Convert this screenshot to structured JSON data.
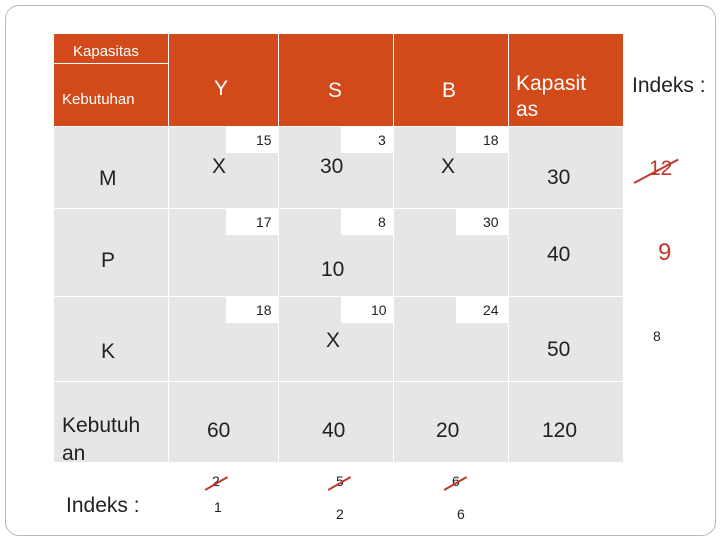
{
  "table": {
    "corner_top": "Kapasitas",
    "corner_bottom": "Kebutuhan",
    "col_headers": [
      "Y",
      "S",
      "B"
    ],
    "capacity_header": "Kapasit as",
    "index_header": "Indeks :",
    "rows": [
      {
        "label": "M",
        "costs": [
          "15",
          "3",
          "18"
        ],
        "allocations": [
          "X",
          "30",
          "X"
        ],
        "capacity": "30",
        "index": "12",
        "index_struck": true
      },
      {
        "label": "P",
        "costs": [
          "17",
          "8",
          "30"
        ],
        "allocations": [
          "",
          "10",
          ""
        ],
        "capacity": "40",
        "index": "9",
        "index_struck": false
      },
      {
        "label": "K",
        "costs": [
          "18",
          "10",
          "24"
        ],
        "allocations": [
          "",
          "X",
          ""
        ],
        "capacity": "50",
        "index": "8",
        "index_struck": false
      }
    ],
    "demand_label": "Kebutuh an",
    "demand": [
      "60",
      "40",
      "20"
    ],
    "demand_total": "120",
    "col_index_label": "Indeks :",
    "col_index_first": [
      "2",
      "5",
      "6"
    ],
    "col_index_second": [
      "1",
      "2",
      "6"
    ]
  },
  "colors": {
    "header": "#d34a1a",
    "cell": "#e6e6e6",
    "strike": "#c0392b",
    "index_red": "#c0392b"
  }
}
